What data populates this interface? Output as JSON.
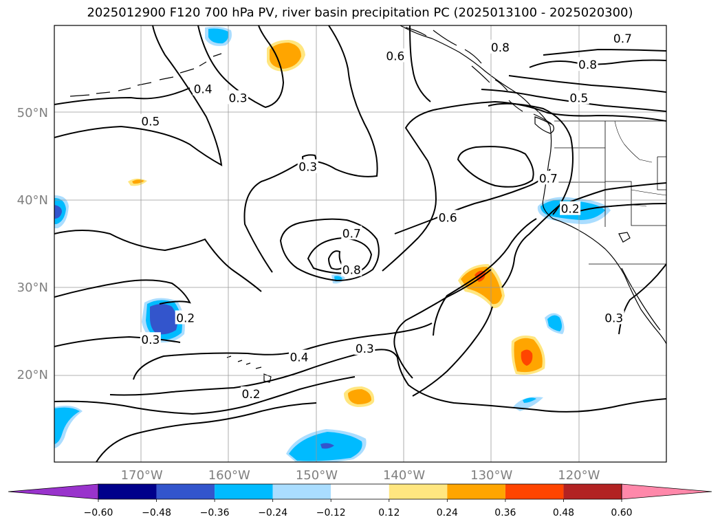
{
  "title": "2025012900 F120 700 hPa PV, river basin precipitation PC (2025013100 - 2025020300)",
  "latitudes": [
    {
      "label": "50°N",
      "value": 50
    },
    {
      "label": "40°N",
      "value": 40
    },
    {
      "label": "30°N",
      "value": 30
    },
    {
      "label": "20°N",
      "value": 20
    }
  ],
  "longitudes": [
    {
      "label": "170°W",
      "value": -170
    },
    {
      "label": "160°W",
      "value": -160
    },
    {
      "label": "150°W",
      "value": -150
    },
    {
      "label": "140°W",
      "value": -140
    },
    {
      "label": "130°W",
      "value": -130
    },
    {
      "label": "120°W",
      "value": -120
    }
  ],
  "contour_labels": [
    {
      "text": "0.7",
      "lon": -115,
      "lat": 58.5
    },
    {
      "text": "0.8",
      "lon": -119,
      "lat": 55.5
    },
    {
      "text": "0.8",
      "lon": -129,
      "lat": 57.5
    },
    {
      "text": "0.6",
      "lon": -141,
      "lat": 56.5
    },
    {
      "text": "0.5",
      "lon": -120,
      "lat": 51.7
    },
    {
      "text": "0.4",
      "lon": -163,
      "lat": 52.7
    },
    {
      "text": "0.3",
      "lon": -159,
      "lat": 51.7
    },
    {
      "text": "0.5",
      "lon": -169,
      "lat": 49.0
    },
    {
      "text": "0.3",
      "lon": -151,
      "lat": 43.8
    },
    {
      "text": "0.7",
      "lon": -123.5,
      "lat": 42.5
    },
    {
      "text": "0.6",
      "lon": -135,
      "lat": 38.0
    },
    {
      "text": "0.7",
      "lon": -146,
      "lat": 36.2
    },
    {
      "text": "0.8",
      "lon": -146,
      "lat": 32.0
    },
    {
      "text": "0.2",
      "lon": -121,
      "lat": 39.0
    },
    {
      "text": "0.2",
      "lon": -165,
      "lat": 26.5
    },
    {
      "text": "0.3",
      "lon": -169,
      "lat": 24.0
    },
    {
      "text": "0.4",
      "lon": -152,
      "lat": 22.0
    },
    {
      "text": "0.3",
      "lon": -144.5,
      "lat": 23.0
    },
    {
      "text": "0.2",
      "lon": -157.5,
      "lat": 17.8
    },
    {
      "text": "0.3",
      "lon": -116,
      "lat": 26.5
    }
  ],
  "colorbar": {
    "labels": [
      "−0.60",
      "−0.48",
      "−0.36",
      "−0.24",
      "−0.12",
      "0.12",
      "0.24",
      "0.36",
      "0.48",
      "0.60"
    ],
    "colors": [
      "#9933cc",
      "#00008b",
      "#3355cc",
      "#00bbff",
      "#aaddff",
      "#ffffff",
      "#ffe680",
      "#ffa500",
      "#ff4500",
      "#b22222",
      "#ff88aa"
    ]
  },
  "colors": {
    "positive_low": "#ffe680",
    "positive_mid": "#ffa500",
    "positive_high": "#ff4500",
    "negative_low": "#aaddff",
    "negative_mid": "#00bbff",
    "negative_high": "#3355cc"
  }
}
